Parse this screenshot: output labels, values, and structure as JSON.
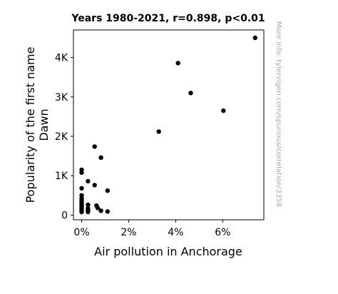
{
  "chart_data": {
    "type": "scatter",
    "title": "Years 1980-2021, r=0.898, p<0.01",
    "xlabel": "Air pollution in Anchorage",
    "ylabel_lines": [
      "Popularity of the first name",
      "Dawn"
    ],
    "xlim": [
      -0.0035,
      0.0775
    ],
    "ylim": [
      -120,
      4700
    ],
    "x_ticks": [
      {
        "value": 0.0,
        "label": "0%"
      },
      {
        "value": 0.02,
        "label": "2%"
      },
      {
        "value": 0.04,
        "label": "4%"
      },
      {
        "value": 0.06,
        "label": "6%"
      }
    ],
    "y_ticks": [
      {
        "value": 0,
        "label": "0"
      },
      {
        "value": 1000,
        "label": "1K"
      },
      {
        "value": 2000,
        "label": "2K"
      },
      {
        "value": 3000,
        "label": "3K"
      },
      {
        "value": 4000,
        "label": "4K"
      }
    ],
    "grid": false,
    "marker_color": "#000000",
    "watermark": "More info: tylervigen.com/spurious/correlation/3358",
    "points": [
      {
        "x": 0.0738,
        "y": 4500
      },
      {
        "x": 0.041,
        "y": 3860
      },
      {
        "x": 0.0464,
        "y": 3100
      },
      {
        "x": 0.0603,
        "y": 2650
      },
      {
        "x": 0.0328,
        "y": 2120
      },
      {
        "x": 0.0055,
        "y": 1740
      },
      {
        "x": 0.0082,
        "y": 1460
      },
      {
        "x": 0.0,
        "y": 1150
      },
      {
        "x": 0.0,
        "y": 1080
      },
      {
        "x": 0.0027,
        "y": 860
      },
      {
        "x": 0.0055,
        "y": 760
      },
      {
        "x": 0.0,
        "y": 680
      },
      {
        "x": 0.011,
        "y": 620
      },
      {
        "x": 0.0,
        "y": 500
      },
      {
        "x": 0.0,
        "y": 420
      },
      {
        "x": 0.0,
        "y": 360
      },
      {
        "x": 0.0,
        "y": 310
      },
      {
        "x": 0.0,
        "y": 270
      },
      {
        "x": 0.0,
        "y": 230
      },
      {
        "x": 0.0,
        "y": 190
      },
      {
        "x": 0.0,
        "y": 150
      },
      {
        "x": 0.0,
        "y": 120
      },
      {
        "x": 0.0,
        "y": 100
      },
      {
        "x": 0.0,
        "y": 80
      },
      {
        "x": 0.0027,
        "y": 260
      },
      {
        "x": 0.0027,
        "y": 170
      },
      {
        "x": 0.0027,
        "y": 120
      },
      {
        "x": 0.0027,
        "y": 80
      },
      {
        "x": 0.0063,
        "y": 240
      },
      {
        "x": 0.0068,
        "y": 180
      },
      {
        "x": 0.0082,
        "y": 110
      },
      {
        "x": 0.011,
        "y": 90
      }
    ]
  }
}
